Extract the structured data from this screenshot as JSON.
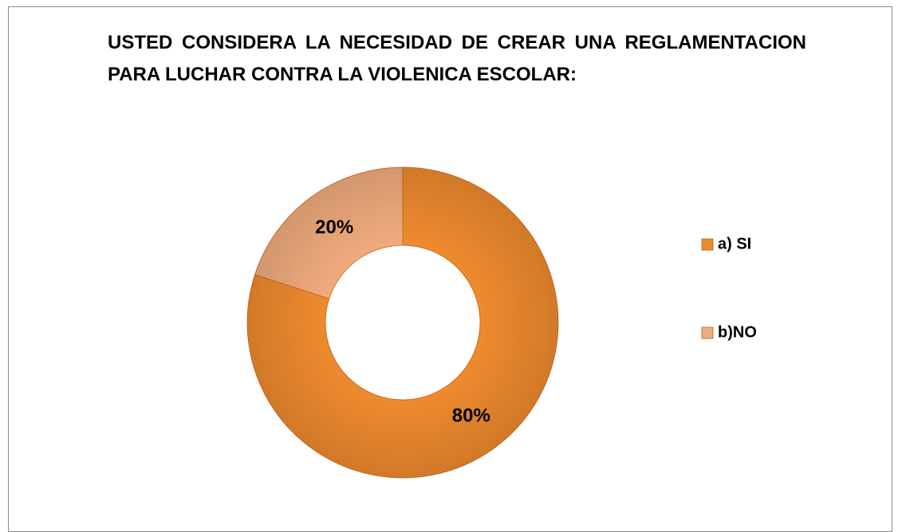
{
  "chart_data": {
    "type": "donut",
    "title": "USTED CONSIDERA LA NECESIDAD DE CREAR UNA REGLAMENTACION PARA LUCHAR CONTRA LA VIOLENICA ESCOLAR:",
    "categories": [
      "a) SI",
      "b)NO"
    ],
    "values": [
      80,
      20
    ],
    "value_labels": [
      "80%",
      "20%"
    ],
    "colors": [
      "#ee8a2f",
      "#f0ab7d"
    ],
    "legend": "right"
  }
}
